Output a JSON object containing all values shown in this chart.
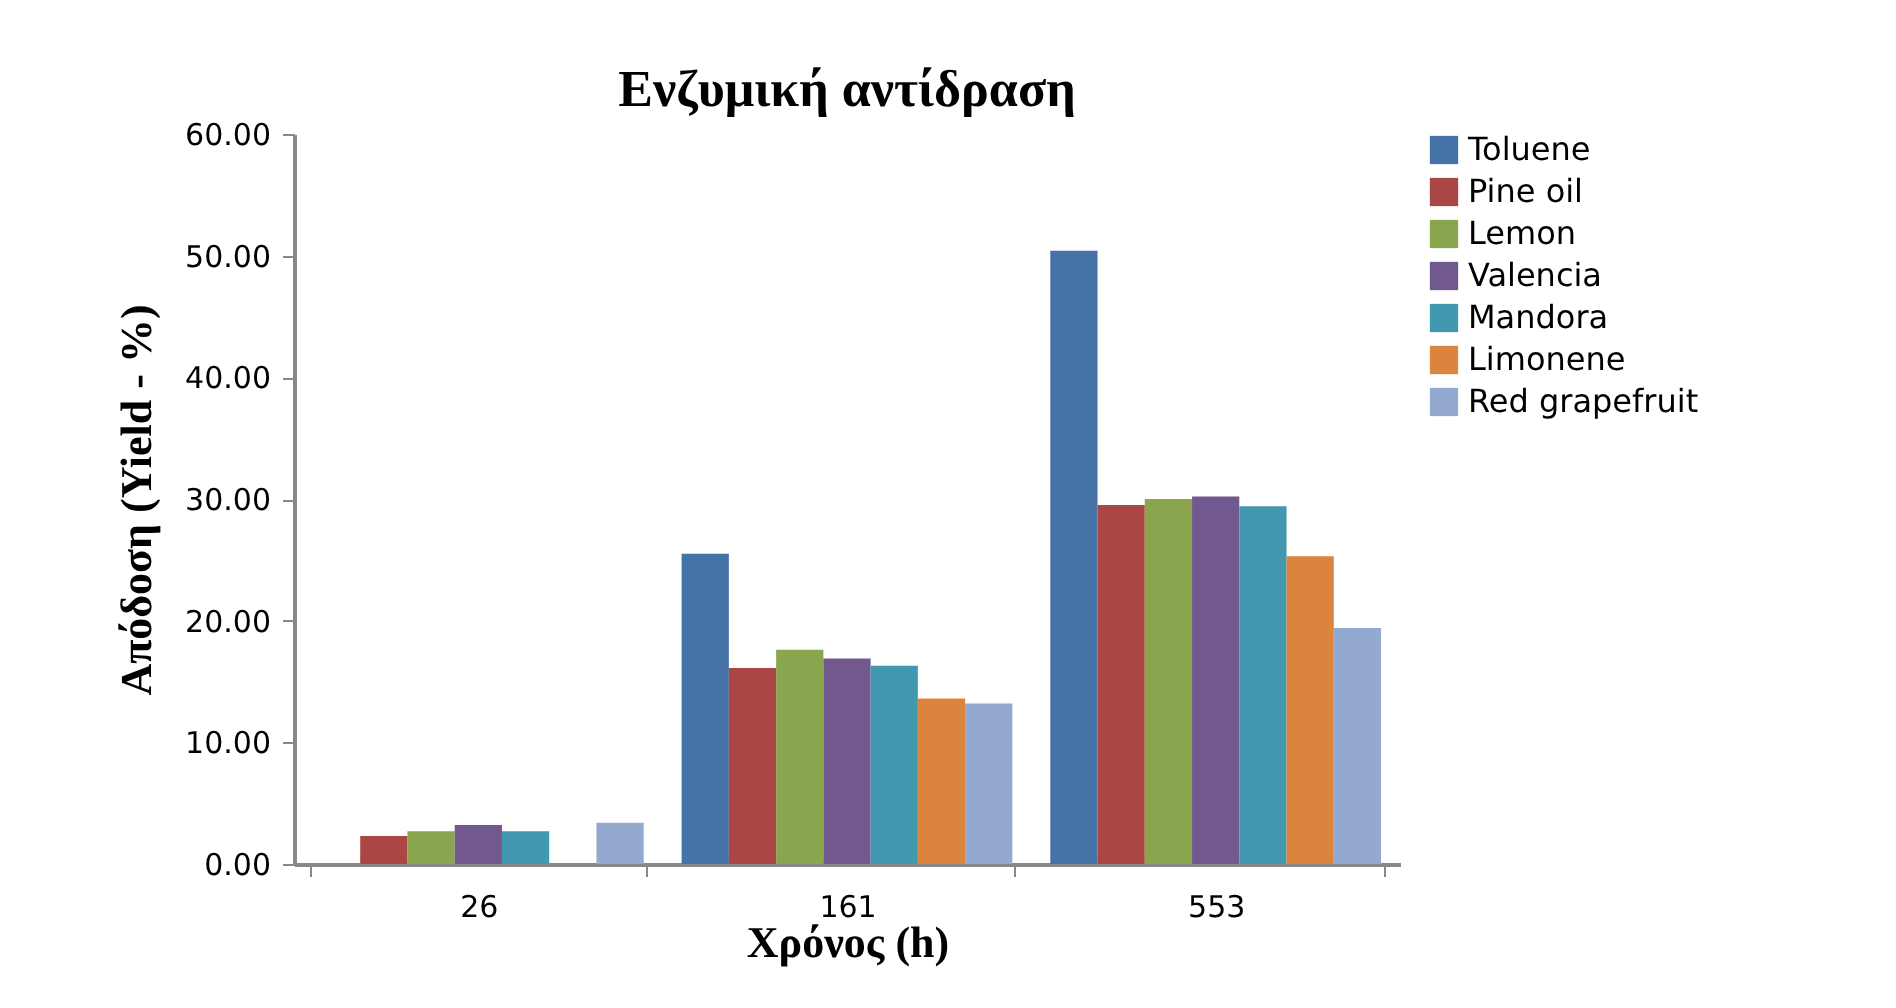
{
  "chart_data": {
    "type": "bar",
    "title": "Ενζυμική αντίδραση",
    "xlabel": "Χρόνος (h)",
    "ylabel": "Απόδοση (Yield - %)",
    "categories": [
      "26",
      "161",
      "553"
    ],
    "series": [
      {
        "name": "Toluene",
        "color": "#4572a7",
        "values": [
          null,
          25.5,
          50.4
        ]
      },
      {
        "name": "Pine oil",
        "color": "#aa4643",
        "values": [
          2.3,
          16.1,
          29.5
        ]
      },
      {
        "name": "Lemon",
        "color": "#89a54e",
        "values": [
          2.7,
          17.6,
          30.0
        ]
      },
      {
        "name": "Valencia",
        "color": "#71588f",
        "values": [
          3.2,
          16.9,
          30.2
        ]
      },
      {
        "name": "Mandora",
        "color": "#4198af",
        "values": [
          2.7,
          16.3,
          29.4
        ]
      },
      {
        "name": "Limonene",
        "color": "#db843d",
        "values": [
          null,
          13.6,
          25.3
        ]
      },
      {
        "name": "Red grapefruit",
        "color": "#93a9cf",
        "values": [
          3.4,
          13.2,
          19.4
        ]
      }
    ],
    "ylim": [
      0,
      60
    ],
    "yticks": [
      {
        "value": 0,
        "label": "0.00"
      },
      {
        "value": 10,
        "label": "10.00"
      },
      {
        "value": 20,
        "label": "20.00"
      },
      {
        "value": 30,
        "label": "30.00"
      },
      {
        "value": 40,
        "label": "40.00"
      },
      {
        "value": 50,
        "label": "50.00"
      },
      {
        "value": 60,
        "label": "60.00"
      }
    ],
    "legend": "right",
    "grid": false
  }
}
